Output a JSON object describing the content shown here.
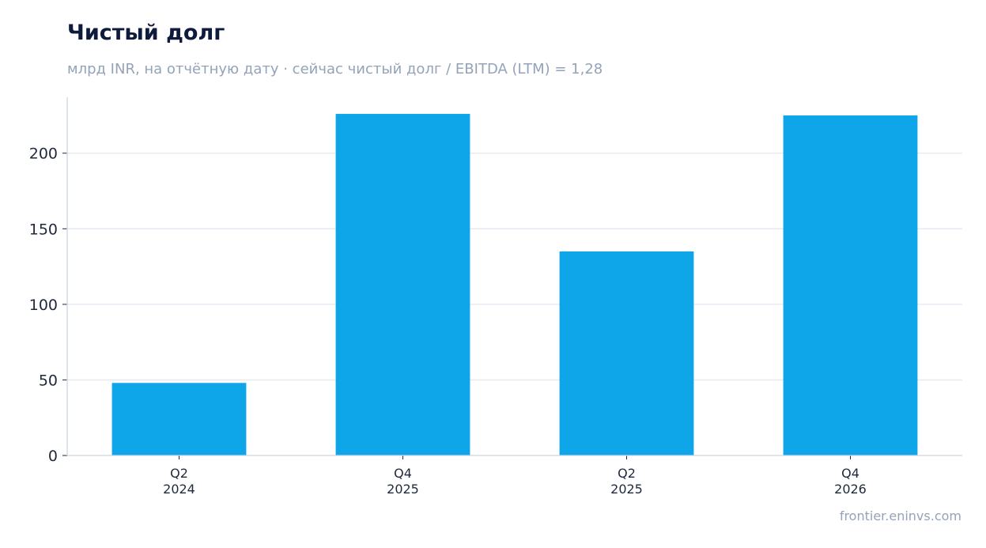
{
  "header": {
    "title": "Чистый долг",
    "subtitle": "млрд INR, на отчётную дату · сейчас чистый долг / EBITDA (LTM) = 1,28"
  },
  "footer": {
    "source": "frontier.eninvs.com"
  },
  "colors": {
    "bar": "#0fa5e9",
    "grid": "#e2e8f0",
    "axis": "#cbd5e1",
    "tick_text": "#1e293b"
  },
  "chart_data": {
    "type": "bar",
    "title": "Чистый долг",
    "subtitle": "млрд INR, на отчётную дату · сейчас чистый долг / EBITDA (LTM) = 1,28",
    "categories": [
      [
        "Q2",
        "2024"
      ],
      [
        "Q4",
        "2025"
      ],
      [
        "Q2",
        "2025"
      ],
      [
        "Q4",
        "2026"
      ]
    ],
    "values": [
      48,
      226,
      135,
      225
    ],
    "ylim": [
      0,
      237
    ],
    "yticks": [
      0,
      50,
      100,
      150,
      200
    ],
    "grid": true,
    "legend": "none"
  }
}
